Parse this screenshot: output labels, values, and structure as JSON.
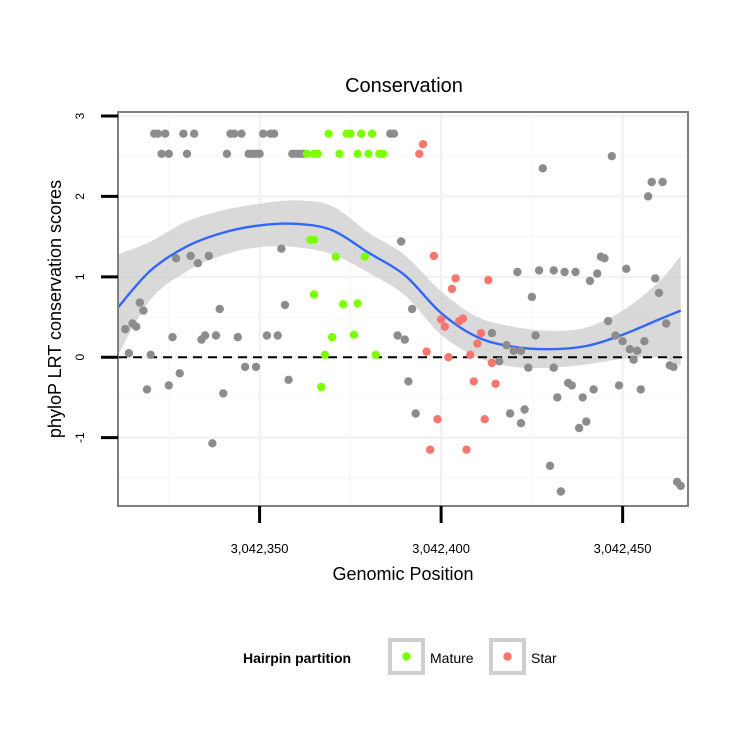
{
  "chart_data": {
    "type": "scatter",
    "title": "Conservation",
    "xlabel": "Genomic Position",
    "ylabel": "phyloP LRT conservation scores",
    "xlim": [
      3042311,
      3042468
    ],
    "ylim": [
      -1.85,
      3.05
    ],
    "x_ticks": [
      3042350,
      3042400,
      3042450
    ],
    "x_tick_labels": [
      "3,042,350",
      "3,042,400",
      "3,042,450"
    ],
    "y_ticks": [
      -1,
      0,
      1,
      2,
      3
    ],
    "y_tick_labels": [
      "-1",
      "0",
      "1",
      "2",
      "3"
    ],
    "grid": true,
    "reference_line": {
      "y": 0,
      "style": "dashed"
    },
    "legend": {
      "title": "Hairpin partition",
      "position": "bottom",
      "entries": [
        {
          "name": "Mature",
          "color": "#7cff00"
        },
        {
          "name": "Star",
          "color": "#f8766d"
        }
      ]
    },
    "colors": {
      "other": "#8c8c8c",
      "mature": "#7cff00",
      "star": "#f8766d",
      "smooth": "#3366ff",
      "band": "#d2d2d2"
    },
    "series": [
      {
        "name": "",
        "color": "#8c8c8c",
        "points": [
          [
            3042313,
            0.35
          ],
          [
            3042314,
            0.05
          ],
          [
            3042315,
            0.42
          ],
          [
            3042316,
            0.38
          ],
          [
            3042317,
            0.68
          ],
          [
            3042318,
            0.58
          ],
          [
            3042319,
            -0.4
          ],
          [
            3042320,
            0.03
          ],
          [
            3042321,
            2.78
          ],
          [
            3042322,
            2.78
          ],
          [
            3042323,
            2.53
          ],
          [
            3042324,
            2.78
          ],
          [
            3042325,
            2.53
          ],
          [
            3042325,
            -0.35
          ],
          [
            3042326,
            0.25
          ],
          [
            3042327,
            1.23
          ],
          [
            3042328,
            -0.2
          ],
          [
            3042329,
            2.78
          ],
          [
            3042330,
            2.53
          ],
          [
            3042331,
            1.26
          ],
          [
            3042332,
            2.78
          ],
          [
            3042333,
            1.17
          ],
          [
            3042334,
            0.22
          ],
          [
            3042335,
            0.27
          ],
          [
            3042336,
            1.26
          ],
          [
            3042337,
            -1.07
          ],
          [
            3042338,
            0.27
          ],
          [
            3042339,
            0.6
          ],
          [
            3042340,
            -0.45
          ],
          [
            3042341,
            2.53
          ],
          [
            3042342,
            2.78
          ],
          [
            3042343,
            2.78
          ],
          [
            3042344,
            0.25
          ],
          [
            3042345,
            2.78
          ],
          [
            3042346,
            -0.12
          ],
          [
            3042347,
            2.53
          ],
          [
            3042348,
            2.53
          ],
          [
            3042349,
            -0.12
          ],
          [
            3042349,
            2.53
          ],
          [
            3042350,
            2.53
          ],
          [
            3042351,
            2.78
          ],
          [
            3042352,
            0.27
          ],
          [
            3042353,
            2.78
          ],
          [
            3042354,
            2.78
          ],
          [
            3042355,
            0.27
          ],
          [
            3042356,
            1.35
          ],
          [
            3042357,
            0.65
          ],
          [
            3042358,
            -0.28
          ],
          [
            3042359,
            2.53
          ],
          [
            3042360,
            2.53
          ],
          [
            3042361,
            2.53
          ],
          [
            3042362,
            2.53
          ],
          [
            3042386,
            2.78
          ],
          [
            3042387,
            2.78
          ],
          [
            3042388,
            0.27
          ],
          [
            3042389,
            1.44
          ],
          [
            3042390,
            0.22
          ],
          [
            3042391,
            -0.3
          ],
          [
            3042392,
            0.6
          ],
          [
            3042393,
            -0.7
          ],
          [
            3042414,
            0.3
          ],
          [
            3042416,
            -0.05
          ],
          [
            3042418,
            0.15
          ],
          [
            3042419,
            -0.7
          ],
          [
            3042420,
            0.08
          ],
          [
            3042421,
            1.06
          ],
          [
            3042422,
            0.08
          ],
          [
            3042422,
            -0.82
          ],
          [
            3042423,
            -0.65
          ],
          [
            3042424,
            -0.13
          ],
          [
            3042425,
            0.75
          ],
          [
            3042426,
            0.27
          ],
          [
            3042427,
            1.08
          ],
          [
            3042428,
            2.35
          ],
          [
            3042430,
            -1.35
          ],
          [
            3042431,
            -0.13
          ],
          [
            3042431,
            1.08
          ],
          [
            3042432,
            -0.5
          ],
          [
            3042433,
            -1.67
          ],
          [
            3042434,
            1.06
          ],
          [
            3042435,
            -0.32
          ],
          [
            3042436,
            -0.35
          ],
          [
            3042437,
            1.06
          ],
          [
            3042438,
            -0.88
          ],
          [
            3042439,
            -0.5
          ],
          [
            3042440,
            -0.8
          ],
          [
            3042441,
            0.95
          ],
          [
            3042442,
            -0.4
          ],
          [
            3042443,
            1.04
          ],
          [
            3042444,
            1.25
          ],
          [
            3042445,
            1.23
          ],
          [
            3042446,
            0.45
          ],
          [
            3042447,
            2.5
          ],
          [
            3042448,
            0.27
          ],
          [
            3042449,
            -0.35
          ],
          [
            3042450,
            0.2
          ],
          [
            3042451,
            1.1
          ],
          [
            3042452,
            0.1
          ],
          [
            3042453,
            -0.03
          ],
          [
            3042454,
            0.08
          ],
          [
            3042455,
            -0.4
          ],
          [
            3042456,
            0.2
          ],
          [
            3042457,
            2.0
          ],
          [
            3042458,
            2.18
          ],
          [
            3042459,
            0.98
          ],
          [
            3042460,
            0.8
          ],
          [
            3042461,
            2.18
          ],
          [
            3042462,
            0.42
          ],
          [
            3042463,
            -0.1
          ],
          [
            3042464,
            -0.12
          ],
          [
            3042465,
            -1.55
          ],
          [
            3042466,
            -1.6
          ]
        ]
      },
      {
        "name": "Mature",
        "color": "#7cff00",
        "points": [
          [
            3042363,
            2.53
          ],
          [
            3042364,
            1.46
          ],
          [
            3042365,
            1.46
          ],
          [
            3042365,
            2.53
          ],
          [
            3042365,
            0.78
          ],
          [
            3042366,
            2.53
          ],
          [
            3042367,
            -0.37
          ],
          [
            3042368,
            0.03
          ],
          [
            3042369,
            2.78
          ],
          [
            3042370,
            0.25
          ],
          [
            3042371,
            1.25
          ],
          [
            3042372,
            2.53
          ],
          [
            3042373,
            0.66
          ],
          [
            3042374,
            2.78
          ],
          [
            3042375,
            2.78
          ],
          [
            3042376,
            0.28
          ],
          [
            3042377,
            0.67
          ],
          [
            3042377,
            2.53
          ],
          [
            3042378,
            2.78
          ],
          [
            3042379,
            1.25
          ],
          [
            3042380,
            2.53
          ],
          [
            3042381,
            2.78
          ],
          [
            3042382,
            0.03
          ],
          [
            3042383,
            2.53
          ],
          [
            3042384,
            2.53
          ]
        ]
      },
      {
        "name": "Star",
        "color": "#f8766d",
        "points": [
          [
            3042394,
            2.53
          ],
          [
            3042395,
            2.65
          ],
          [
            3042396,
            0.07
          ],
          [
            3042397,
            -1.15
          ],
          [
            3042398,
            1.26
          ],
          [
            3042399,
            -0.77
          ],
          [
            3042400,
            0.47
          ],
          [
            3042401,
            0.38
          ],
          [
            3042402,
            0.0
          ],
          [
            3042403,
            0.85
          ],
          [
            3042404,
            0.98
          ],
          [
            3042405,
            0.45
          ],
          [
            3042406,
            0.48
          ],
          [
            3042407,
            -1.15
          ],
          [
            3042408,
            0.03
          ],
          [
            3042409,
            -0.3
          ],
          [
            3042410,
            0.17
          ],
          [
            3042411,
            0.3
          ],
          [
            3042412,
            -0.77
          ],
          [
            3042413,
            0.96
          ],
          [
            3042414,
            -0.07
          ],
          [
            3042415,
            -0.33
          ]
        ]
      }
    ],
    "smooth": [
      [
        3042311,
        0.62,
        0.03,
        1.28
      ],
      [
        3042320,
        1.08,
        0.72,
        1.44
      ],
      [
        3042330,
        1.38,
        1.07,
        1.69
      ],
      [
        3042340,
        1.55,
        1.27,
        1.83
      ],
      [
        3042350,
        1.64,
        1.37,
        1.91
      ],
      [
        3042360,
        1.66,
        1.37,
        1.95
      ],
      [
        3042370,
        1.58,
        1.28,
        1.88
      ],
      [
        3042380,
        1.3,
        1.05,
        1.55
      ],
      [
        3042390,
        1.02,
        0.77,
        1.27
      ],
      [
        3042400,
        0.55,
        0.28,
        0.82
      ],
      [
        3042410,
        0.25,
        0.0,
        0.5
      ],
      [
        3042420,
        0.13,
        -0.12,
        0.38
      ],
      [
        3042430,
        0.1,
        -0.13,
        0.33
      ],
      [
        3042440,
        0.14,
        -0.09,
        0.37
      ],
      [
        3042450,
        0.28,
        -0.02,
        0.58
      ],
      [
        3042460,
        0.47,
        0.0,
        0.94
      ],
      [
        3042466,
        0.58,
        -0.1,
        1.26
      ]
    ]
  }
}
